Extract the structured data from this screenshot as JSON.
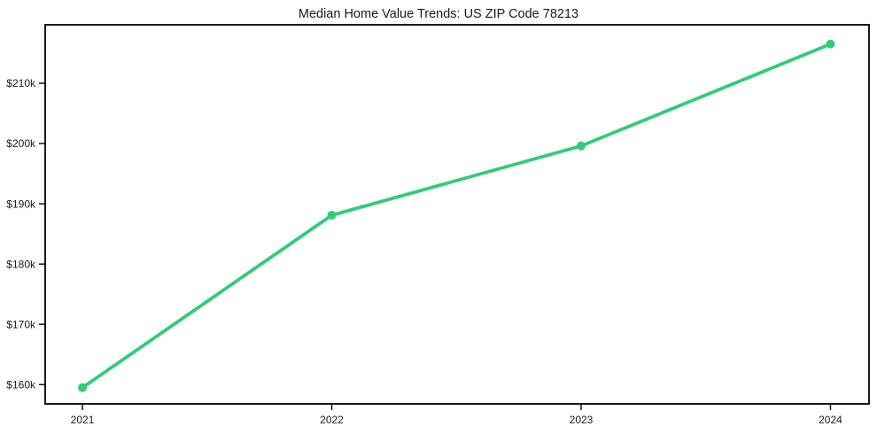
{
  "title": "Median Home Value Trends: US ZIP Code 78213",
  "chart_data": {
    "type": "line",
    "title": "Median Home Value Trends: US ZIP Code 78213",
    "xlabel": "",
    "ylabel": "",
    "x": [
      2021,
      2022,
      2023,
      2024
    ],
    "x_tick_labels": [
      "2021",
      "2022",
      "2023",
      "2024"
    ],
    "values": [
      159500,
      188100,
      199600,
      216500
    ],
    "y_ticks": [
      160000,
      170000,
      180000,
      190000,
      200000,
      210000
    ],
    "y_tick_labels": [
      "$160k",
      "$170k",
      "$180k",
      "$190k",
      "$200k",
      "$210k"
    ],
    "ylim": [
      156800,
      219700
    ],
    "grid": false,
    "legend": "none",
    "marker": "circle"
  },
  "colors": {
    "line": "#33cb7a",
    "marker": "#33cb7a",
    "frame": "#000000",
    "text": "#1a1a1a",
    "background": "#ffffff"
  }
}
